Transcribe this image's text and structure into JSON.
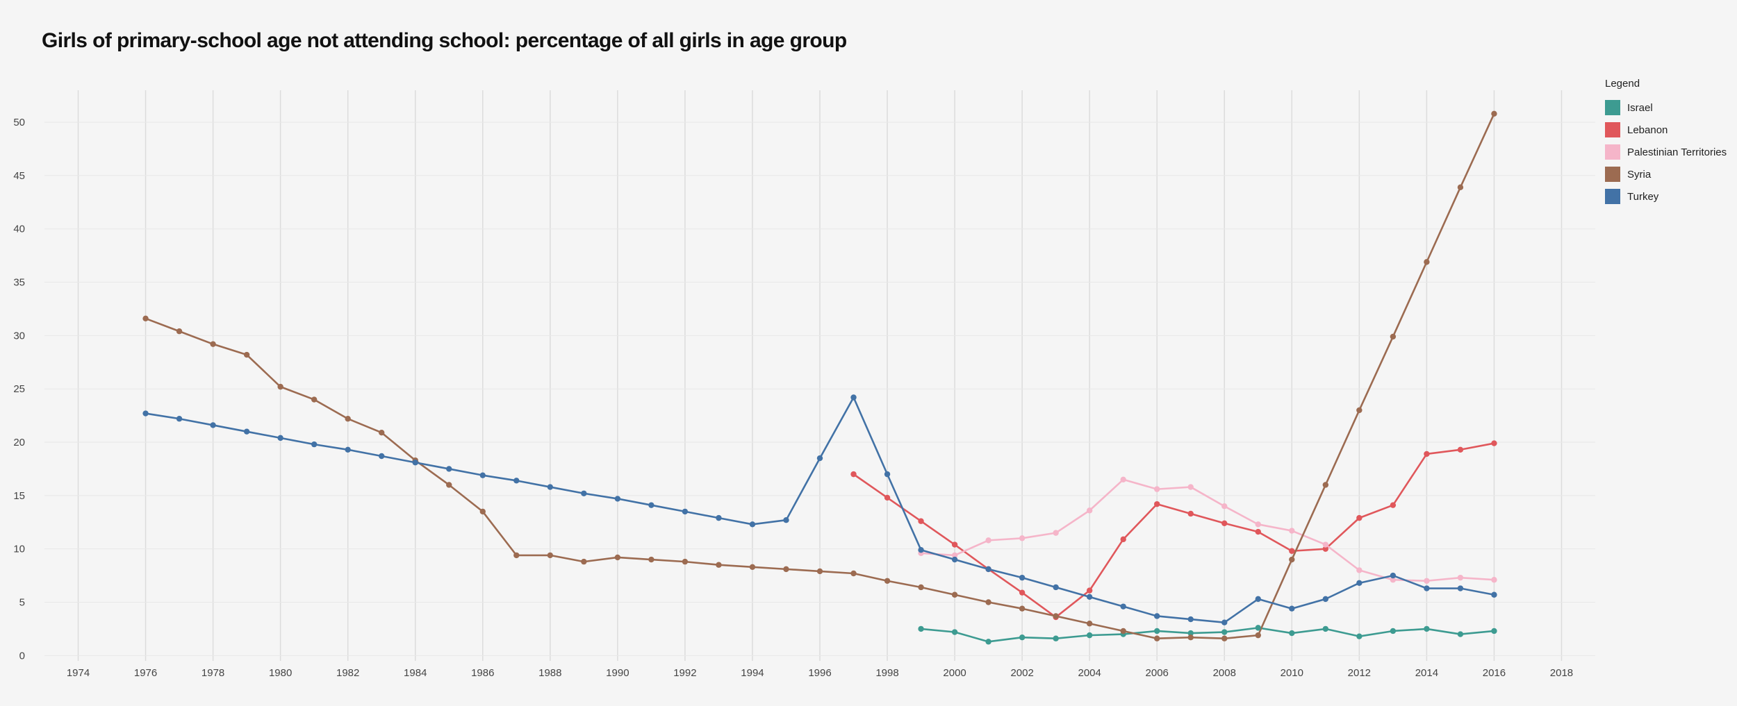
{
  "chart_data": {
    "type": "line",
    "title": "Girls of primary-school age not attending school: percentage of all girls in age group",
    "xlabel": "",
    "ylabel": "",
    "xlim": [
      1973,
      2019
    ],
    "ylim": [
      -0.5,
      53
    ],
    "xticks": [
      "1974",
      "1976",
      "1978",
      "1980",
      "1982",
      "1984",
      "1986",
      "1988",
      "1990",
      "1992",
      "1994",
      "1996",
      "1998",
      "2000",
      "2002",
      "2004",
      "2006",
      "2008",
      "2010",
      "2012",
      "2014",
      "2016",
      "2018"
    ],
    "yticks": [
      "0",
      "5",
      "10",
      "15",
      "20",
      "25",
      "30",
      "35",
      "40",
      "45",
      "50"
    ],
    "grid": true,
    "legend_title": "Legend",
    "legend_position": "right",
    "series": [
      {
        "name": "Israel",
        "color": "#3d9b91",
        "points": [
          [
            1999,
            2.5
          ],
          [
            2000,
            2.2
          ],
          [
            2001,
            1.3
          ],
          [
            2002,
            1.7
          ],
          [
            2003,
            1.6
          ],
          [
            2004,
            1.9
          ],
          [
            2005,
            2.0
          ],
          [
            2006,
            2.3
          ],
          [
            2007,
            2.1
          ],
          [
            2008,
            2.2
          ],
          [
            2009,
            2.6
          ],
          [
            2010,
            2.1
          ],
          [
            2011,
            2.5
          ],
          [
            2012,
            1.8
          ],
          [
            2013,
            2.3
          ],
          [
            2014,
            2.5
          ],
          [
            2015,
            2.0
          ],
          [
            2016,
            2.3
          ]
        ]
      },
      {
        "name": "Lebanon",
        "color": "#e0575b",
        "points": [
          [
            1997,
            17.0
          ],
          [
            1998,
            14.8
          ],
          [
            1999,
            12.6
          ],
          [
            2000,
            10.4
          ],
          [
            2001,
            8.1
          ],
          [
            2002,
            5.9
          ],
          [
            2003,
            3.6
          ],
          [
            2004,
            6.1
          ],
          [
            2005,
            10.9
          ],
          [
            2006,
            14.2
          ],
          [
            2007,
            13.3
          ],
          [
            2008,
            12.4
          ],
          [
            2009,
            11.6
          ],
          [
            2010,
            9.8
          ],
          [
            2011,
            10.0
          ],
          [
            2012,
            12.9
          ],
          [
            2013,
            14.1
          ],
          [
            2014,
            18.9
          ],
          [
            2015,
            19.3
          ],
          [
            2016,
            19.9
          ]
        ]
      },
      {
        "name": "Palestinian Territories",
        "color": "#f5b5c9",
        "points": [
          [
            1999,
            9.6
          ],
          [
            2000,
            9.4
          ],
          [
            2001,
            10.8
          ],
          [
            2002,
            11.0
          ],
          [
            2003,
            11.5
          ],
          [
            2004,
            13.6
          ],
          [
            2005,
            16.5
          ],
          [
            2006,
            15.6
          ],
          [
            2007,
            15.8
          ],
          [
            2008,
            14.0
          ],
          [
            2009,
            12.3
          ],
          [
            2010,
            11.7
          ],
          [
            2011,
            10.4
          ],
          [
            2012,
            8.0
          ],
          [
            2013,
            7.1
          ],
          [
            2014,
            7.0
          ],
          [
            2015,
            7.3
          ],
          [
            2016,
            7.1
          ]
        ]
      },
      {
        "name": "Syria",
        "color": "#9c6b51",
        "points": [
          [
            1976,
            31.6
          ],
          [
            1977,
            30.4
          ],
          [
            1978,
            29.2
          ],
          [
            1979,
            28.2
          ],
          [
            1980,
            25.2
          ],
          [
            1981,
            24.0
          ],
          [
            1982,
            22.2
          ],
          [
            1983,
            20.9
          ],
          [
            1984,
            18.3
          ],
          [
            1985,
            16.0
          ],
          [
            1986,
            13.5
          ],
          [
            1987,
            9.4
          ],
          [
            1988,
            9.4
          ],
          [
            1989,
            8.8
          ],
          [
            1990,
            9.2
          ],
          [
            1991,
            9.0
          ],
          [
            1992,
            8.8
          ],
          [
            1993,
            8.5
          ],
          [
            1994,
            8.3
          ],
          [
            1995,
            8.1
          ],
          [
            1996,
            7.9
          ],
          [
            1997,
            7.7
          ],
          [
            1998,
            7.0
          ],
          [
            1999,
            6.4
          ],
          [
            2000,
            5.7
          ],
          [
            2001,
            5.0
          ],
          [
            2002,
            4.4
          ],
          [
            2003,
            3.7
          ],
          [
            2004,
            3.0
          ],
          [
            2005,
            2.3
          ],
          [
            2006,
            1.6
          ],
          [
            2007,
            1.7
          ],
          [
            2008,
            1.6
          ],
          [
            2009,
            1.9
          ],
          [
            2010,
            9.0
          ],
          [
            2011,
            16.0
          ],
          [
            2012,
            23.0
          ],
          [
            2013,
            29.9
          ],
          [
            2014,
            36.9
          ],
          [
            2015,
            43.9
          ],
          [
            2016,
            50.8
          ]
        ]
      },
      {
        "name": "Turkey",
        "color": "#4272a6",
        "points": [
          [
            1976,
            22.7
          ],
          [
            1977,
            22.2
          ],
          [
            1978,
            21.6
          ],
          [
            1979,
            21.0
          ],
          [
            1980,
            20.4
          ],
          [
            1981,
            19.8
          ],
          [
            1982,
            19.3
          ],
          [
            1983,
            18.7
          ],
          [
            1984,
            18.1
          ],
          [
            1985,
            17.5
          ],
          [
            1986,
            16.9
          ],
          [
            1987,
            16.4
          ],
          [
            1988,
            15.8
          ],
          [
            1989,
            15.2
          ],
          [
            1990,
            14.7
          ],
          [
            1991,
            14.1
          ],
          [
            1992,
            13.5
          ],
          [
            1993,
            12.9
          ],
          [
            1994,
            12.3
          ],
          [
            1995,
            12.7
          ],
          [
            1996,
            18.5
          ],
          [
            1997,
            24.2
          ],
          [
            1998,
            17.0
          ],
          [
            1999,
            9.9
          ],
          [
            2000,
            9.0
          ],
          [
            2001,
            8.1
          ],
          [
            2002,
            7.3
          ],
          [
            2003,
            6.4
          ],
          [
            2004,
            5.5
          ],
          [
            2005,
            4.6
          ],
          [
            2006,
            3.7
          ],
          [
            2007,
            3.4
          ],
          [
            2008,
            3.1
          ],
          [
            2009,
            5.3
          ],
          [
            2010,
            4.4
          ],
          [
            2011,
            5.3
          ],
          [
            2012,
            6.8
          ],
          [
            2013,
            7.5
          ],
          [
            2014,
            6.3
          ],
          [
            2015,
            6.3
          ],
          [
            2016,
            5.7
          ]
        ]
      }
    ]
  }
}
